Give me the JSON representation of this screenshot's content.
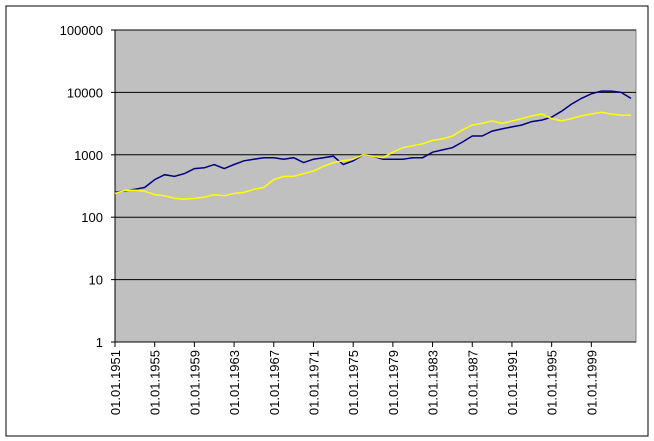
{
  "chart_data": {
    "type": "line",
    "log_scale": true,
    "grid": true,
    "plot_background": "#c0c0c0",
    "x": [
      "01.01.1951",
      "01.01.1952",
      "01.01.1953",
      "01.01.1954",
      "01.01.1955",
      "01.01.1956",
      "01.01.1957",
      "01.01.1958",
      "01.01.1959",
      "01.01.1960",
      "01.01.1961",
      "01.01.1962",
      "01.01.1963",
      "01.01.1964",
      "01.01.1965",
      "01.01.1966",
      "01.01.1967",
      "01.01.1968",
      "01.01.1969",
      "01.01.1970",
      "01.01.1971",
      "01.01.1972",
      "01.01.1973",
      "01.01.1974",
      "01.01.1975",
      "01.01.1976",
      "01.01.1977",
      "01.01.1978",
      "01.01.1979",
      "01.01.1980",
      "01.01.1981",
      "01.01.1982",
      "01.01.1983",
      "01.01.1984",
      "01.01.1985",
      "01.01.1986",
      "01.01.1987",
      "01.01.1988",
      "01.01.1989",
      "01.01.1990",
      "01.01.1991",
      "01.01.1992",
      "01.01.1993",
      "01.01.1994",
      "01.01.1995",
      "01.01.1996",
      "01.01.1997",
      "01.01.1998",
      "01.01.1999",
      "01.01.2000",
      "01.01.2001",
      "01.01.2002",
      "01.01.2003"
    ],
    "series": [
      {
        "color": "#000080",
        "values": [
          250,
          265,
          280,
          300,
          400,
          480,
          450,
          500,
          600,
          620,
          700,
          600,
          700,
          800,
          850,
          900,
          900,
          850,
          900,
          750,
          850,
          900,
          950,
          700,
          800,
          1000,
          950,
          850,
          850,
          850,
          900,
          900,
          1100,
          1200,
          1300,
          1600,
          2000,
          2000,
          2400,
          2600,
          2800,
          3000,
          3400,
          3600,
          4000,
          5000,
          6500,
          8000,
          9500,
          10500,
          10500,
          10000,
          8000
        ]
      },
      {
        "color": "#ffff00",
        "values": [
          240,
          270,
          270,
          260,
          230,
          220,
          200,
          195,
          200,
          210,
          230,
          220,
          240,
          250,
          280,
          300,
          400,
          450,
          450,
          500,
          550,
          650,
          750,
          800,
          850,
          1000,
          950,
          900,
          1100,
          1300,
          1400,
          1500,
          1700,
          1800,
          2000,
          2500,
          3000,
          3200,
          3500,
          3200,
          3500,
          3800,
          4200,
          4500,
          3800,
          3500,
          3800,
          4200,
          4500,
          4800,
          4500,
          4300,
          4300
        ]
      }
    ],
    "xlim": [
      "01.01.1951",
      "01.07.2003"
    ],
    "xticks": [
      "01.01.1951",
      "01.01.1955",
      "01.01.1959",
      "01.01.1963",
      "01.01.1967",
      "01.01.1971",
      "01.01.1975",
      "01.01.1979",
      "01.01.1983",
      "01.01.1987",
      "01.01.1991",
      "01.01.1995",
      "01.01.1999"
    ],
    "ylim": [
      1,
      100000
    ],
    "yticks": [
      1,
      10,
      100,
      1000,
      10000,
      100000
    ]
  }
}
